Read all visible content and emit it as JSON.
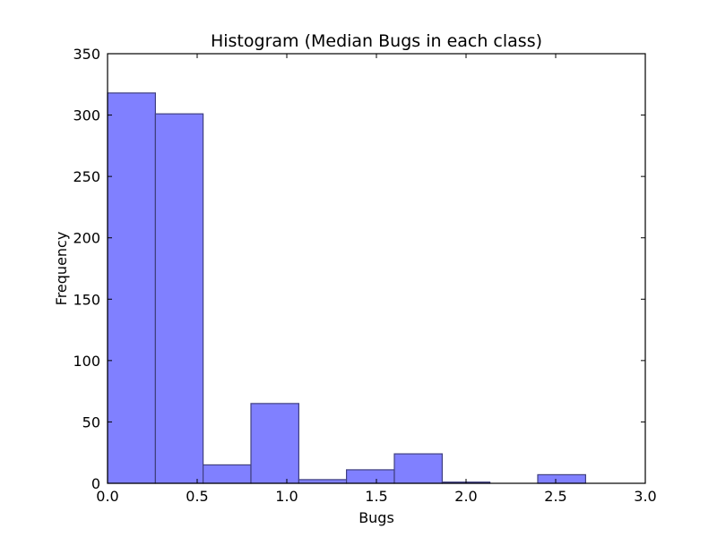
{
  "chart_data": {
    "type": "bar",
    "title": "Histogram (Median Bugs in each class)",
    "xlabel": "Bugs",
    "ylabel": "Frequency",
    "xlim": [
      0.0,
      3.0
    ],
    "ylim": [
      0,
      350
    ],
    "x_ticks": [
      0.0,
      0.5,
      1.0,
      1.5,
      2.0,
      2.5,
      3.0
    ],
    "x_tick_labels": [
      "0.0",
      "0.5",
      "1.0",
      "1.5",
      "2.0",
      "2.5",
      "3.0"
    ],
    "y_ticks": [
      0,
      50,
      100,
      150,
      200,
      250,
      300,
      350
    ],
    "y_tick_labels": [
      "0",
      "50",
      "100",
      "150",
      "200",
      "250",
      "300",
      "350"
    ],
    "grid": false,
    "bar_color": "#8080ff",
    "bar_edge_color": "#404080",
    "bins": [
      {
        "start": 0.0,
        "end": 0.267,
        "count": 318
      },
      {
        "start": 0.267,
        "end": 0.533,
        "count": 301
      },
      {
        "start": 0.533,
        "end": 0.8,
        "count": 15
      },
      {
        "start": 0.8,
        "end": 1.067,
        "count": 65
      },
      {
        "start": 1.067,
        "end": 1.333,
        "count": 3
      },
      {
        "start": 1.333,
        "end": 1.6,
        "count": 11
      },
      {
        "start": 1.6,
        "end": 1.867,
        "count": 24
      },
      {
        "start": 1.867,
        "end": 2.133,
        "count": 1
      },
      {
        "start": 2.133,
        "end": 2.4,
        "count": 0
      },
      {
        "start": 2.4,
        "end": 2.667,
        "count": 7
      }
    ]
  }
}
